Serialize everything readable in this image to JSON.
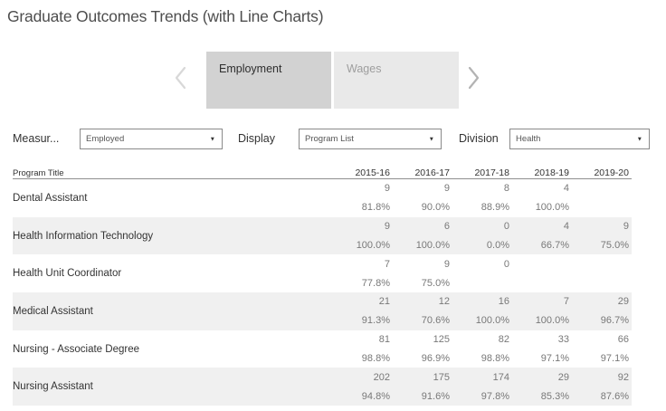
{
  "title": "Graduate Outcomes Trends (with Line Charts)",
  "story_nav": {
    "tabs": [
      {
        "label": "Employment",
        "active": true
      },
      {
        "label": "Wages",
        "active": false
      }
    ]
  },
  "filters": {
    "measure": {
      "label": "Measur...",
      "value": "Employed"
    },
    "display": {
      "label": "Display",
      "value": "Program List"
    },
    "division": {
      "label": "Division",
      "value": "Health"
    }
  },
  "icons": {
    "dropdown_caret": "▼"
  },
  "table": {
    "program_header": "Program Title",
    "years": [
      "2015-16",
      "2016-17",
      "2017-18",
      "2018-19",
      "2019-20"
    ],
    "rows": [
      {
        "program": "Dental Assistant",
        "counts": [
          "9",
          "9",
          "8",
          "4",
          ""
        ],
        "percents": [
          "81.8%",
          "90.0%",
          "88.9%",
          "100.0%",
          ""
        ]
      },
      {
        "program": "Health Information Technology",
        "counts": [
          "9",
          "6",
          "0",
          "4",
          "9"
        ],
        "percents": [
          "100.0%",
          "100.0%",
          "0.0%",
          "66.7%",
          "75.0%"
        ]
      },
      {
        "program": "Health Unit Coordinator",
        "counts": [
          "7",
          "9",
          "0",
          "",
          ""
        ],
        "percents": [
          "77.8%",
          "75.0%",
          "",
          "",
          ""
        ]
      },
      {
        "program": "Medical Assistant",
        "counts": [
          "21",
          "12",
          "16",
          "7",
          "29"
        ],
        "percents": [
          "91.3%",
          "70.6%",
          "100.0%",
          "100.0%",
          "96.7%"
        ]
      },
      {
        "program": "Nursing - Associate Degree",
        "counts": [
          "81",
          "125",
          "82",
          "33",
          "66"
        ],
        "percents": [
          "98.8%",
          "96.9%",
          "98.8%",
          "97.1%",
          "97.1%"
        ]
      },
      {
        "program": "Nursing Assistant",
        "counts": [
          "202",
          "175",
          "174",
          "29",
          "92"
        ],
        "percents": [
          "94.8%",
          "91.6%",
          "97.8%",
          "85.3%",
          "87.6%"
        ]
      }
    ]
  },
  "colors": {
    "title_text": "#4e4e4e",
    "tab_active_bg": "#d2d2d2",
    "tab_inactive_bg": "#e9e9e9",
    "tab_inactive_text": "#9e9e9e",
    "row_stripe_bg": "#f0f0f0",
    "value_text": "#787878",
    "dark_text": "#333333",
    "dropdown_border": "#8a8a8a"
  }
}
